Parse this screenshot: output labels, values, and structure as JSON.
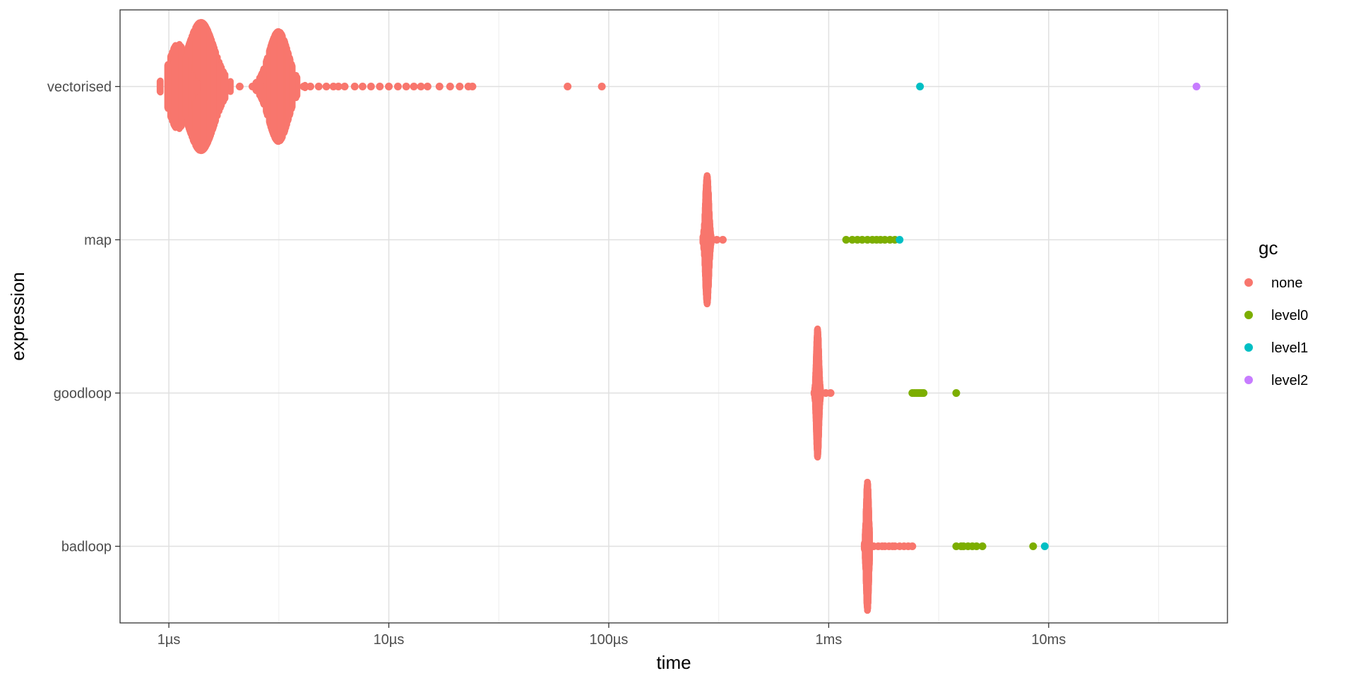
{
  "chart_data": {
    "type": "scatter",
    "xlabel": "time",
    "ylabel": "expression",
    "x_scale": "log10",
    "x_unit": "seconds",
    "xlim": [
      6e-07,
      0.065
    ],
    "x_ticks": [
      {
        "value": 1e-06,
        "label": "1µs"
      },
      {
        "value": 1e-05,
        "label": "10µs"
      },
      {
        "value": 0.0001,
        "label": "100µs"
      },
      {
        "value": 0.001,
        "label": "1ms"
      },
      {
        "value": 0.01,
        "label": "10ms"
      }
    ],
    "categories": [
      "vectorised",
      "map",
      "goodloop",
      "badloop"
    ],
    "grid": true,
    "legend": {
      "title": "gc",
      "position": "right",
      "entries": [
        {
          "name": "none",
          "color": "#F8766D"
        },
        {
          "name": "level0",
          "color": "#7CAE00"
        },
        {
          "name": "level1",
          "color": "#00BFC4"
        },
        {
          "name": "level2",
          "color": "#C77CFF"
        }
      ]
    },
    "series": [
      {
        "expression": "vectorised",
        "clusters": [
          {
            "gc": "none",
            "center": 1.4e-06,
            "sd": 0.06,
            "halfwidth": 0.42,
            "n": 90
          },
          {
            "gc": "none",
            "center": 1.1e-06,
            "sd": 0.04,
            "halfwidth": 0.28,
            "n": 30
          },
          {
            "gc": "none",
            "center": 3.15e-06,
            "sd": 0.045,
            "halfwidth": 0.36,
            "n": 60
          }
        ],
        "points": [
          {
            "gc": "none",
            "x": 2.1e-06
          },
          {
            "gc": "none",
            "x": 2.4e-06
          },
          {
            "gc": "none",
            "x": 2.6e-06
          },
          {
            "gc": "none",
            "x": 4.1e-06
          },
          {
            "gc": "none",
            "x": 4.4e-06
          },
          {
            "gc": "none",
            "x": 4.8e-06
          },
          {
            "gc": "none",
            "x": 5.2e-06
          },
          {
            "gc": "none",
            "x": 5.6e-06
          },
          {
            "gc": "none",
            "x": 5.9e-06
          },
          {
            "gc": "none",
            "x": 6.3e-06
          },
          {
            "gc": "none",
            "x": 7e-06
          },
          {
            "gc": "none",
            "x": 7.6e-06
          },
          {
            "gc": "none",
            "x": 8.3e-06
          },
          {
            "gc": "none",
            "x": 9.1e-06
          },
          {
            "gc": "none",
            "x": 1e-05
          },
          {
            "gc": "none",
            "x": 1.1e-05
          },
          {
            "gc": "none",
            "x": 1.2e-05
          },
          {
            "gc": "none",
            "x": 1.3e-05
          },
          {
            "gc": "none",
            "x": 1.4e-05
          },
          {
            "gc": "none",
            "x": 1.5e-05
          },
          {
            "gc": "none",
            "x": 1.7e-05
          },
          {
            "gc": "none",
            "x": 1.9e-05
          },
          {
            "gc": "none",
            "x": 2.1e-05
          },
          {
            "gc": "none",
            "x": 2.3e-05
          },
          {
            "gc": "none",
            "x": 2.4e-05
          },
          {
            "gc": "none",
            "x": 6.5e-05
          },
          {
            "gc": "none",
            "x": 9.3e-05
          },
          {
            "gc": "level1",
            "x": 0.0026
          },
          {
            "gc": "level2",
            "x": 0.047
          }
        ]
      },
      {
        "expression": "map",
        "clusters": [
          {
            "gc": "none",
            "center": 0.00028,
            "sd": 0.008,
            "halfwidth": 0.42,
            "n": 80
          }
        ],
        "points": [
          {
            "gc": "none",
            "x": 0.000295
          },
          {
            "gc": "none",
            "x": 0.00031
          },
          {
            "gc": "none",
            "x": 0.00033
          },
          {
            "gc": "level0",
            "x": 0.0012
          },
          {
            "gc": "level0",
            "x": 0.00128
          },
          {
            "gc": "level0",
            "x": 0.00135
          },
          {
            "gc": "level0",
            "x": 0.00142
          },
          {
            "gc": "level0",
            "x": 0.0015
          },
          {
            "gc": "level0",
            "x": 0.00158
          },
          {
            "gc": "level0",
            "x": 0.00165
          },
          {
            "gc": "level0",
            "x": 0.00172
          },
          {
            "gc": "level0",
            "x": 0.0018
          },
          {
            "gc": "level0",
            "x": 0.0019
          },
          {
            "gc": "level0",
            "x": 0.002
          },
          {
            "gc": "level1",
            "x": 0.0021
          }
        ]
      },
      {
        "expression": "goodloop",
        "clusters": [
          {
            "gc": "none",
            "center": 0.00089,
            "sd": 0.006,
            "halfwidth": 0.42,
            "n": 80
          }
        ],
        "points": [
          {
            "gc": "none",
            "x": 0.00093
          },
          {
            "gc": "none",
            "x": 0.00097
          },
          {
            "gc": "none",
            "x": 0.00102
          },
          {
            "gc": "level0",
            "x": 0.0024
          },
          {
            "gc": "level0",
            "x": 0.00245
          },
          {
            "gc": "level0",
            "x": 0.0025
          },
          {
            "gc": "level0",
            "x": 0.00255
          },
          {
            "gc": "level0",
            "x": 0.0026
          },
          {
            "gc": "level0",
            "x": 0.00265
          },
          {
            "gc": "level0",
            "x": 0.0027
          },
          {
            "gc": "level0",
            "x": 0.0038
          }
        ]
      },
      {
        "expression": "badloop",
        "clusters": [
          {
            "gc": "none",
            "center": 0.0015,
            "sd": 0.006,
            "halfwidth": 0.42,
            "n": 80
          }
        ],
        "points": [
          {
            "gc": "none",
            "x": 0.0016
          },
          {
            "gc": "none",
            "x": 0.00168
          },
          {
            "gc": "none",
            "x": 0.00175
          },
          {
            "gc": "none",
            "x": 0.0018
          },
          {
            "gc": "none",
            "x": 0.00188
          },
          {
            "gc": "none",
            "x": 0.00195
          },
          {
            "gc": "none",
            "x": 0.002
          },
          {
            "gc": "none",
            "x": 0.0021
          },
          {
            "gc": "none",
            "x": 0.0022
          },
          {
            "gc": "none",
            "x": 0.0023
          },
          {
            "gc": "none",
            "x": 0.0024
          },
          {
            "gc": "level0",
            "x": 0.0038
          },
          {
            "gc": "level0",
            "x": 0.004
          },
          {
            "gc": "level0",
            "x": 0.0041
          },
          {
            "gc": "level0",
            "x": 0.0043
          },
          {
            "gc": "level0",
            "x": 0.0045
          },
          {
            "gc": "level0",
            "x": 0.0047
          },
          {
            "gc": "level0",
            "x": 0.005
          },
          {
            "gc": "level0",
            "x": 0.0085
          },
          {
            "gc": "level1",
            "x": 0.0096
          }
        ]
      }
    ]
  }
}
